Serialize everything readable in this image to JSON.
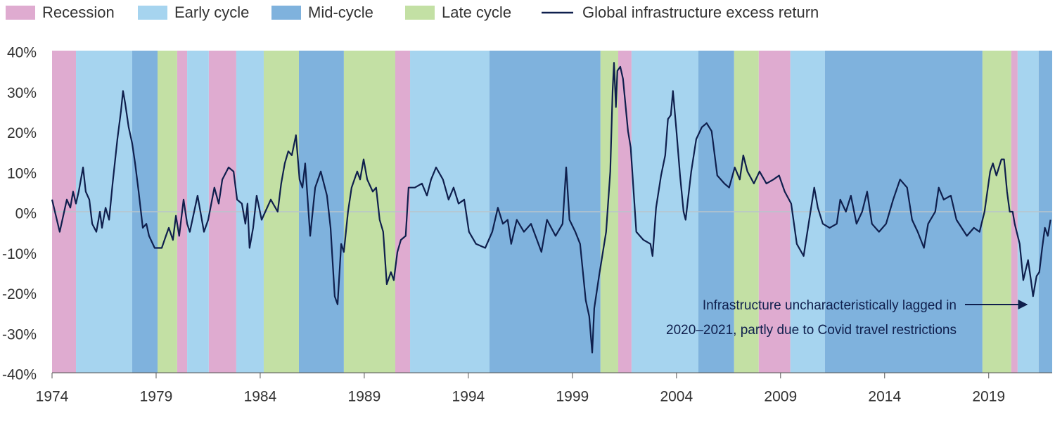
{
  "chart_data": {
    "type": "line",
    "phases": [
      {
        "name": "Recession",
        "color": "#dfabd0",
        "periods": [
          [
            1974.0,
            1975.15
          ],
          [
            1980.01,
            1980.49
          ],
          [
            1981.53,
            1982.85
          ],
          [
            1990.49,
            1991.2
          ],
          [
            2001.2,
            2001.84
          ],
          [
            2007.95,
            2009.47
          ],
          [
            2020.08,
            2020.39
          ]
        ]
      },
      {
        "name": "Early cycle",
        "color": "#a6d4ef",
        "periods": [
          [
            1975.15,
            1977.85
          ],
          [
            1980.49,
            1981.53
          ],
          [
            1982.85,
            1984.17
          ],
          [
            1991.2,
            1995.01
          ],
          [
            2001.84,
            2005.05
          ],
          [
            2009.47,
            2011.13
          ],
          [
            2020.39,
            2021.4
          ]
        ]
      },
      {
        "name": "Mid-cycle",
        "color": "#7fb2dd",
        "periods": [
          [
            1977.85,
            1979.07
          ],
          [
            1985.86,
            1988.02
          ],
          [
            1995.01,
            2000.35
          ],
          [
            2005.05,
            2006.77
          ],
          [
            2011.13,
            2018.7
          ],
          [
            2021.4,
            2022.05
          ]
        ]
      },
      {
        "name": "Late cycle",
        "color": "#c3e0a4",
        "periods": [
          [
            1979.07,
            1980.01
          ],
          [
            1984.17,
            1985.86
          ],
          [
            1988.02,
            1990.49
          ],
          [
            2000.35,
            2001.2
          ],
          [
            2006.77,
            2007.95
          ],
          [
            2018.7,
            2020.08
          ]
        ]
      }
    ],
    "series": [
      {
        "name": "Global infrastructure excess return",
        "color": "#0f1f4d",
        "x": [
          1974.0,
          1974.37,
          1974.71,
          1974.88,
          1975.01,
          1975.15,
          1975.28,
          1975.49,
          1975.62,
          1975.79,
          1975.93,
          1976.13,
          1976.3,
          1976.4,
          1976.57,
          1976.74,
          1976.91,
          1977.14,
          1977.31,
          1977.41,
          1977.51,
          1977.68,
          1977.85,
          1977.99,
          1978.16,
          1978.36,
          1978.53,
          1978.66,
          1978.93,
          1979.27,
          1979.47,
          1979.61,
          1979.81,
          1979.95,
          1980.11,
          1980.32,
          1980.49,
          1980.62,
          1980.99,
          1981.3,
          1981.5,
          1981.8,
          1982.01,
          1982.18,
          1982.48,
          1982.72,
          1982.89,
          1983.12,
          1983.29,
          1983.39,
          1983.49,
          1983.66,
          1983.83,
          1984.07,
          1984.51,
          1984.84,
          1985.01,
          1985.18,
          1985.35,
          1985.52,
          1985.72,
          1985.89,
          1986.03,
          1986.16,
          1986.4,
          1986.64,
          1986.91,
          1987.21,
          1987.38,
          1987.58,
          1987.72,
          1987.89,
          1988.02,
          1988.22,
          1988.39,
          1988.66,
          1988.8,
          1988.97,
          1989.14,
          1989.41,
          1989.57,
          1989.74,
          1989.91,
          1990.08,
          1990.28,
          1990.42,
          1990.59,
          1990.76,
          1990.99,
          1991.13,
          1991.43,
          1991.77,
          1992.01,
          1992.21,
          1992.45,
          1992.78,
          1993.05,
          1993.29,
          1993.53,
          1993.8,
          1994.03,
          1994.37,
          1994.81,
          1995.15,
          1995.42,
          1995.66,
          1995.89,
          1996.06,
          1996.33,
          1996.67,
          1997.01,
          1997.51,
          1997.78,
          1998.19,
          1998.53,
          1998.7,
          1998.86,
          1999.14,
          1999.37,
          1999.64,
          1999.81,
          1999.95,
          2000.05,
          2000.28,
          2000.62,
          2000.82,
          2000.93,
          2001.0,
          2001.09,
          2001.16,
          2001.3,
          2001.43,
          2001.67,
          2001.8,
          2002.07,
          2002.41,
          2002.75,
          2002.85,
          2003.02,
          2003.26,
          2003.46,
          2003.59,
          2003.73,
          2003.83,
          2004.0,
          2004.17,
          2004.34,
          2004.44,
          2004.71,
          2004.95,
          2005.22,
          2005.45,
          2005.69,
          2005.96,
          2006.3,
          2006.53,
          2006.8,
          2007.04,
          2007.21,
          2007.41,
          2007.72,
          2007.99,
          2008.32,
          2008.66,
          2008.93,
          2009.2,
          2009.51,
          2009.78,
          2010.11,
          2010.35,
          2010.62,
          2010.79,
          2011.03,
          2011.36,
          2011.7,
          2011.87,
          2012.14,
          2012.38,
          2012.65,
          2012.92,
          2013.16,
          2013.39,
          2013.73,
          2014.07,
          2014.41,
          2014.74,
          2015.08,
          2015.32,
          2015.59,
          2015.89,
          2016.09,
          2016.43,
          2016.6,
          2016.84,
          2017.18,
          2017.45,
          2017.95,
          2018.29,
          2018.56,
          2018.8,
          2019.07,
          2019.2,
          2019.37,
          2019.61,
          2019.74,
          2019.88,
          2020.01,
          2020.15,
          2020.25,
          2020.49,
          2020.66,
          2020.89,
          2021.03,
          2021.13,
          2021.3,
          2021.43,
          2021.57,
          2021.7,
          2021.84,
          2021.97
        ],
        "values": [
          3,
          -5,
          3,
          1,
          5,
          2,
          5,
          11,
          5,
          3,
          -3,
          -5,
          0,
          -4,
          1,
          -2,
          7,
          18,
          25,
          30,
          27,
          21,
          17,
          12,
          5,
          -4,
          -3,
          -6,
          -9,
          -9,
          -6,
          -4,
          -7,
          -1,
          -6,
          3,
          -3,
          -5,
          4,
          -5,
          -2,
          6,
          2,
          8,
          11,
          10,
          3,
          2,
          -3,
          2,
          -9,
          -4,
          4,
          -2,
          3,
          0,
          7,
          12,
          15,
          14,
          19,
          8,
          6,
          12,
          -6,
          6,
          10,
          4,
          -4,
          -21,
          -23,
          -8,
          -10,
          0,
          6,
          10,
          8,
          13,
          8,
          5,
          6,
          -2,
          -5,
          -18,
          -15,
          -17,
          -10,
          -7,
          -6,
          6,
          6,
          7,
          4,
          8,
          11,
          8,
          3,
          6,
          2,
          3,
          -5,
          -8,
          -9,
          -5,
          1,
          -3,
          -2,
          -8,
          -2,
          -5,
          -3,
          -10,
          -2,
          -6,
          -3,
          11,
          -2,
          -5,
          -8,
          -22,
          -26,
          -35,
          -24,
          -16,
          -5,
          10,
          30,
          37,
          26,
          35,
          36,
          33,
          20,
          16,
          -5,
          -7,
          -8,
          -11,
          1,
          9,
          14,
          23,
          24,
          30,
          20,
          9,
          0,
          -2,
          10,
          18,
          21,
          22,
          20,
          9,
          7,
          6,
          11,
          8,
          14,
          10,
          7,
          10,
          7,
          8,
          9,
          5,
          2,
          -8,
          -11,
          -3,
          6,
          1,
          -3,
          -4,
          -3,
          3,
          0,
          4,
          -3,
          0,
          5,
          -3,
          -5,
          -3,
          3,
          8,
          6,
          -2,
          -5,
          -9,
          -3,
          0,
          6,
          3,
          4,
          -2,
          -6,
          -4,
          -5,
          0,
          10,
          12,
          9,
          13,
          13,
          5,
          0,
          0,
          -3,
          -8,
          -17,
          -12,
          -17,
          -21,
          -16,
          -15,
          -9,
          -4,
          -6,
          -2
        ]
      }
    ],
    "xlim": [
      1974,
      2022.05
    ],
    "xticks": [
      1974,
      1979,
      1984,
      1989,
      1994,
      1999,
      2004,
      2009,
      2014,
      2019
    ],
    "ylim": [
      -40,
      40
    ],
    "yticks": [
      {
        "value": -40,
        "label": "-40%"
      },
      {
        "value": -30,
        "label": "-30%"
      },
      {
        "value": -20,
        "label": "-20%"
      },
      {
        "value": -10,
        "label": "-10%"
      },
      {
        "value": 0,
        "label": "0%"
      },
      {
        "value": 10,
        "label": "10%"
      },
      {
        "value": 20,
        "label": "20%"
      },
      {
        "value": 30,
        "label": "30%"
      },
      {
        "value": 40,
        "label": "40%"
      }
    ],
    "annotation": [
      "Infrastructure uncharacteristically lagged in",
      "2020–2021, partly due to Covid travel restrictions"
    ]
  }
}
